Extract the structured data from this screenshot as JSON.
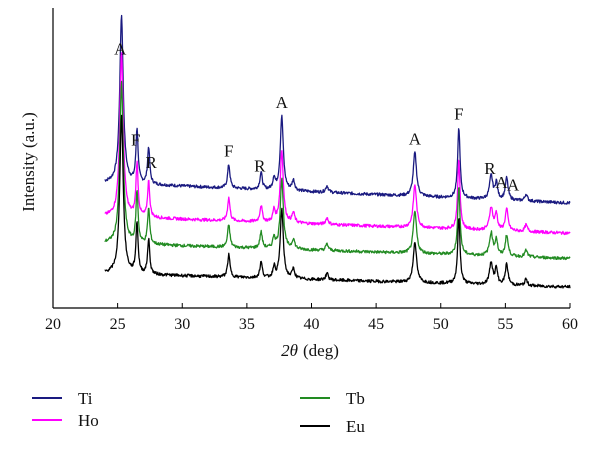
{
  "chart_data": {
    "type": "line",
    "title": "",
    "xlabel_symbol": "2θ",
    "xlabel_unit": "(deg)",
    "ylabel": "Intensity (a.u.)",
    "xlim": [
      20,
      60
    ],
    "xticks": [
      "20",
      "25",
      "30",
      "35",
      "40",
      "45",
      "50",
      "55",
      "60"
    ],
    "y_tick_labels": "none",
    "grid": false,
    "legend_placement": "bottom",
    "series": [
      {
        "name": "Ti",
        "color": "#1a1a80",
        "baseline": 0.5,
        "tilt": 0.12
      },
      {
        "name": "Ho",
        "color": "#ff00ff",
        "baseline": 0.32,
        "tilt": 0.1
      },
      {
        "name": "Tb",
        "color": "#228b22",
        "baseline": 0.17,
        "tilt": 0.09
      },
      {
        "name": "Eu",
        "color": "#000000",
        "baseline": 0.0,
        "tilt": 0.08
      }
    ],
    "peaks": [
      {
        "x": 25.3,
        "h": 1.0,
        "w": 0.16
      },
      {
        "x": 26.5,
        "h": 0.32,
        "w": 0.1
      },
      {
        "x": 27.4,
        "h": 0.22,
        "w": 0.1
      },
      {
        "x": 33.6,
        "h": 0.14,
        "w": 0.11
      },
      {
        "x": 36.1,
        "h": 0.1,
        "w": 0.11
      },
      {
        "x": 37.1,
        "h": 0.07,
        "w": 0.1
      },
      {
        "x": 37.7,
        "h": 0.44,
        "w": 0.14
      },
      {
        "x": 38.6,
        "h": 0.06,
        "w": 0.12
      },
      {
        "x": 41.2,
        "h": 0.04,
        "w": 0.12
      },
      {
        "x": 48.0,
        "h": 0.26,
        "w": 0.15
      },
      {
        "x": 51.4,
        "h": 0.42,
        "w": 0.11
      },
      {
        "x": 53.9,
        "h": 0.14,
        "w": 0.15
      },
      {
        "x": 54.3,
        "h": 0.1,
        "w": 0.11
      },
      {
        "x": 55.1,
        "h": 0.13,
        "w": 0.13
      },
      {
        "x": 56.6,
        "h": 0.04,
        "w": 0.12
      }
    ],
    "annotations": [
      {
        "text": "A",
        "x": 25.2
      },
      {
        "text": "F",
        "x": 26.4
      },
      {
        "text": "R",
        "x": 27.6
      },
      {
        "text": "F",
        "x": 33.6
      },
      {
        "text": "R",
        "x": 36.0
      },
      {
        "text": "A",
        "x": 37.7
      },
      {
        "text": "A",
        "x": 48.0
      },
      {
        "text": "F",
        "x": 51.4
      },
      {
        "text": "R",
        "x": 53.8
      },
      {
        "text": "A",
        "x": 54.7
      },
      {
        "text": "A",
        "x": 55.6
      }
    ]
  }
}
